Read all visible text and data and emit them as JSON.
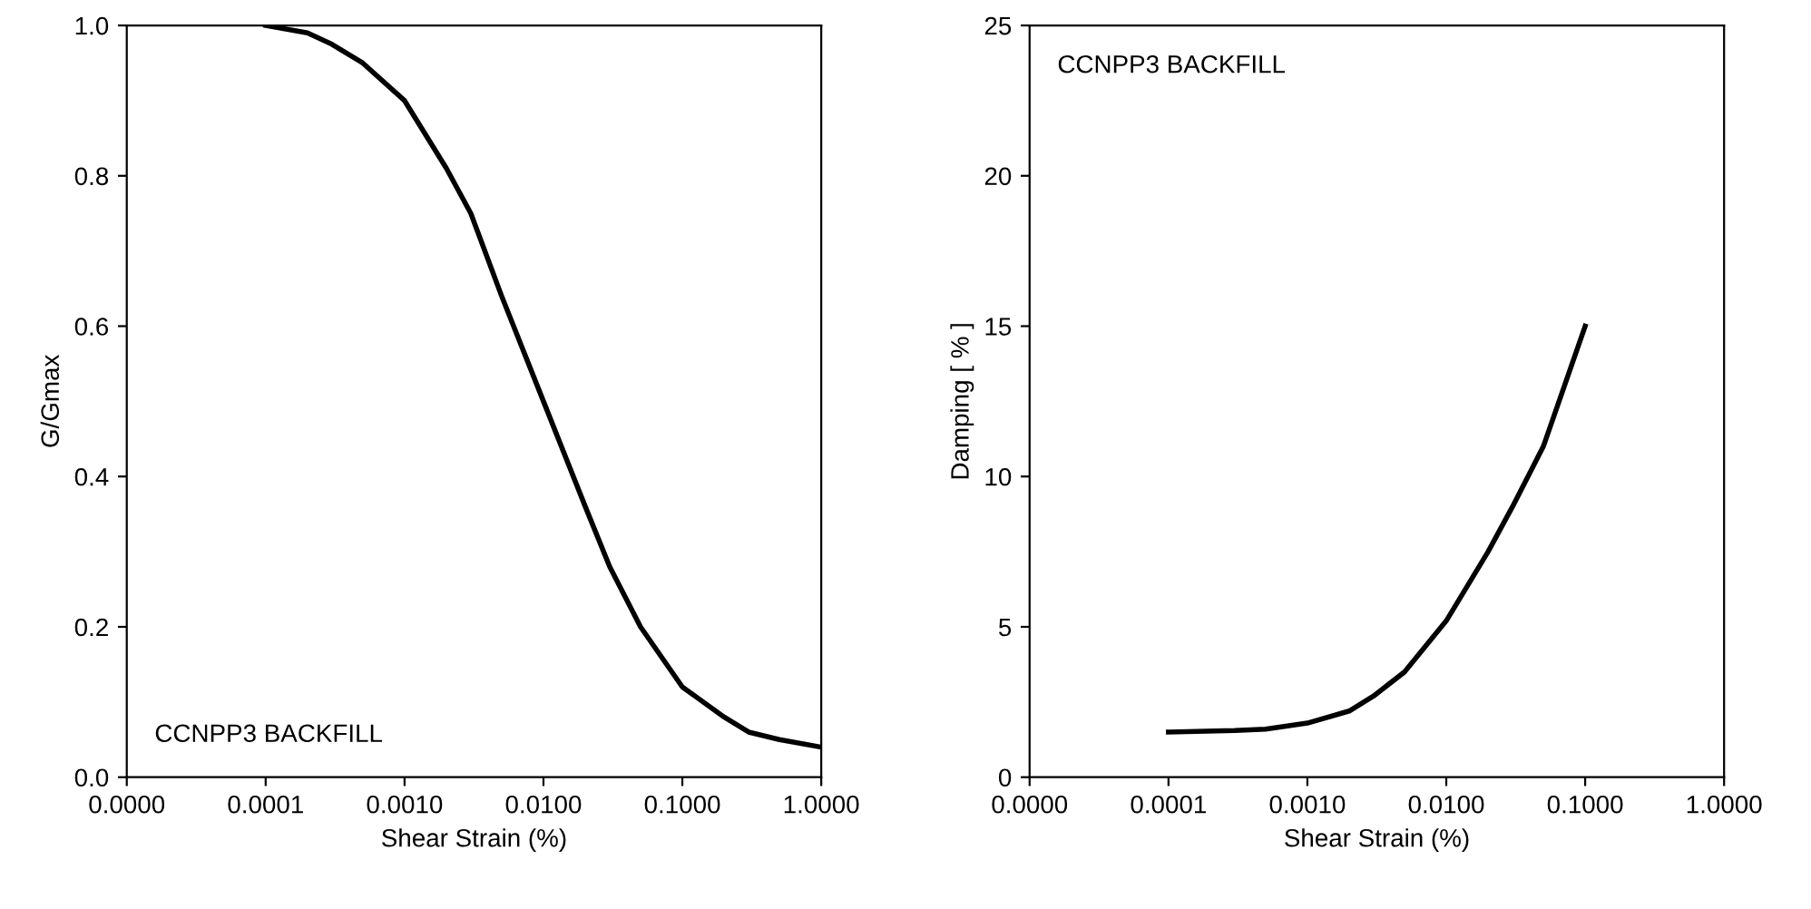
{
  "chart_data": [
    {
      "type": "line",
      "xlabel": "Shear Strain (%)",
      "ylabel": "G/Gmax",
      "log": "x",
      "annotations": [
        "CCNPP3 BACKFILL"
      ],
      "series": [
        {
          "color": "#000000",
          "x": [
            0.0001,
            0.0002,
            0.0003,
            0.0005,
            0.001,
            0.002,
            0.003,
            0.005,
            0.01,
            0.02,
            0.03,
            0.05,
            0.1,
            0.2,
            0.3,
            0.5,
            1.0
          ],
          "values": [
            1.0,
            0.99,
            0.975,
            0.95,
            0.9,
            0.81,
            0.75,
            0.64,
            0.5,
            0.36,
            0.28,
            0.2,
            0.12,
            0.08,
            0.06,
            0.05,
            0.04
          ]
        }
      ],
      "xlim": [
        1e-05,
        1
      ],
      "xticks": [
        {
          "value": 1e-05,
          "label": "0.0000"
        },
        {
          "value": 0.0001,
          "label": "0.0001"
        },
        {
          "value": 0.001,
          "label": "0.0010"
        },
        {
          "value": 0.01,
          "label": "0.0100"
        },
        {
          "value": 0.1,
          "label": "0.1000"
        },
        {
          "value": 1,
          "label": "1.0000"
        }
      ],
      "ylim": [
        0,
        1
      ],
      "yticks": [
        {
          "value": 0,
          "label": "0.0"
        },
        {
          "value": 0.2,
          "label": "0.2"
        },
        {
          "value": 0.4,
          "label": "0.4"
        },
        {
          "value": 0.6,
          "label": "0.6"
        },
        {
          "value": 0.8,
          "label": "0.8"
        },
        {
          "value": 1,
          "label": "1.0"
        }
      ],
      "grid": false,
      "legend": false
    },
    {
      "type": "line",
      "xlabel": "Shear Strain (%)",
      "ylabel": "Damping [ % ]",
      "log": "x",
      "annotations": [
        "CCNPP3 BACKFILL"
      ],
      "series": [
        {
          "color": "#000000",
          "x": [
            0.0001,
            0.0003,
            0.0005,
            0.001,
            0.002,
            0.003,
            0.005,
            0.01,
            0.02,
            0.03,
            0.05,
            0.1
          ],
          "values": [
            1.5,
            1.55,
            1.6,
            1.8,
            2.2,
            2.7,
            3.5,
            5.2,
            7.5,
            9.0,
            11.0,
            15.0
          ]
        }
      ],
      "xlim": [
        1e-05,
        1
      ],
      "xticks": [
        {
          "value": 1e-05,
          "label": "0.0000"
        },
        {
          "value": 0.0001,
          "label": "0.0001"
        },
        {
          "value": 0.001,
          "label": "0.0010"
        },
        {
          "value": 0.01,
          "label": "0.0100"
        },
        {
          "value": 0.1,
          "label": "0.1000"
        },
        {
          "value": 1,
          "label": "1.0000"
        }
      ],
      "ylim": [
        0,
        25
      ],
      "yticks": [
        0,
        5,
        10,
        15,
        20,
        25
      ],
      "grid": false,
      "legend": false
    }
  ]
}
